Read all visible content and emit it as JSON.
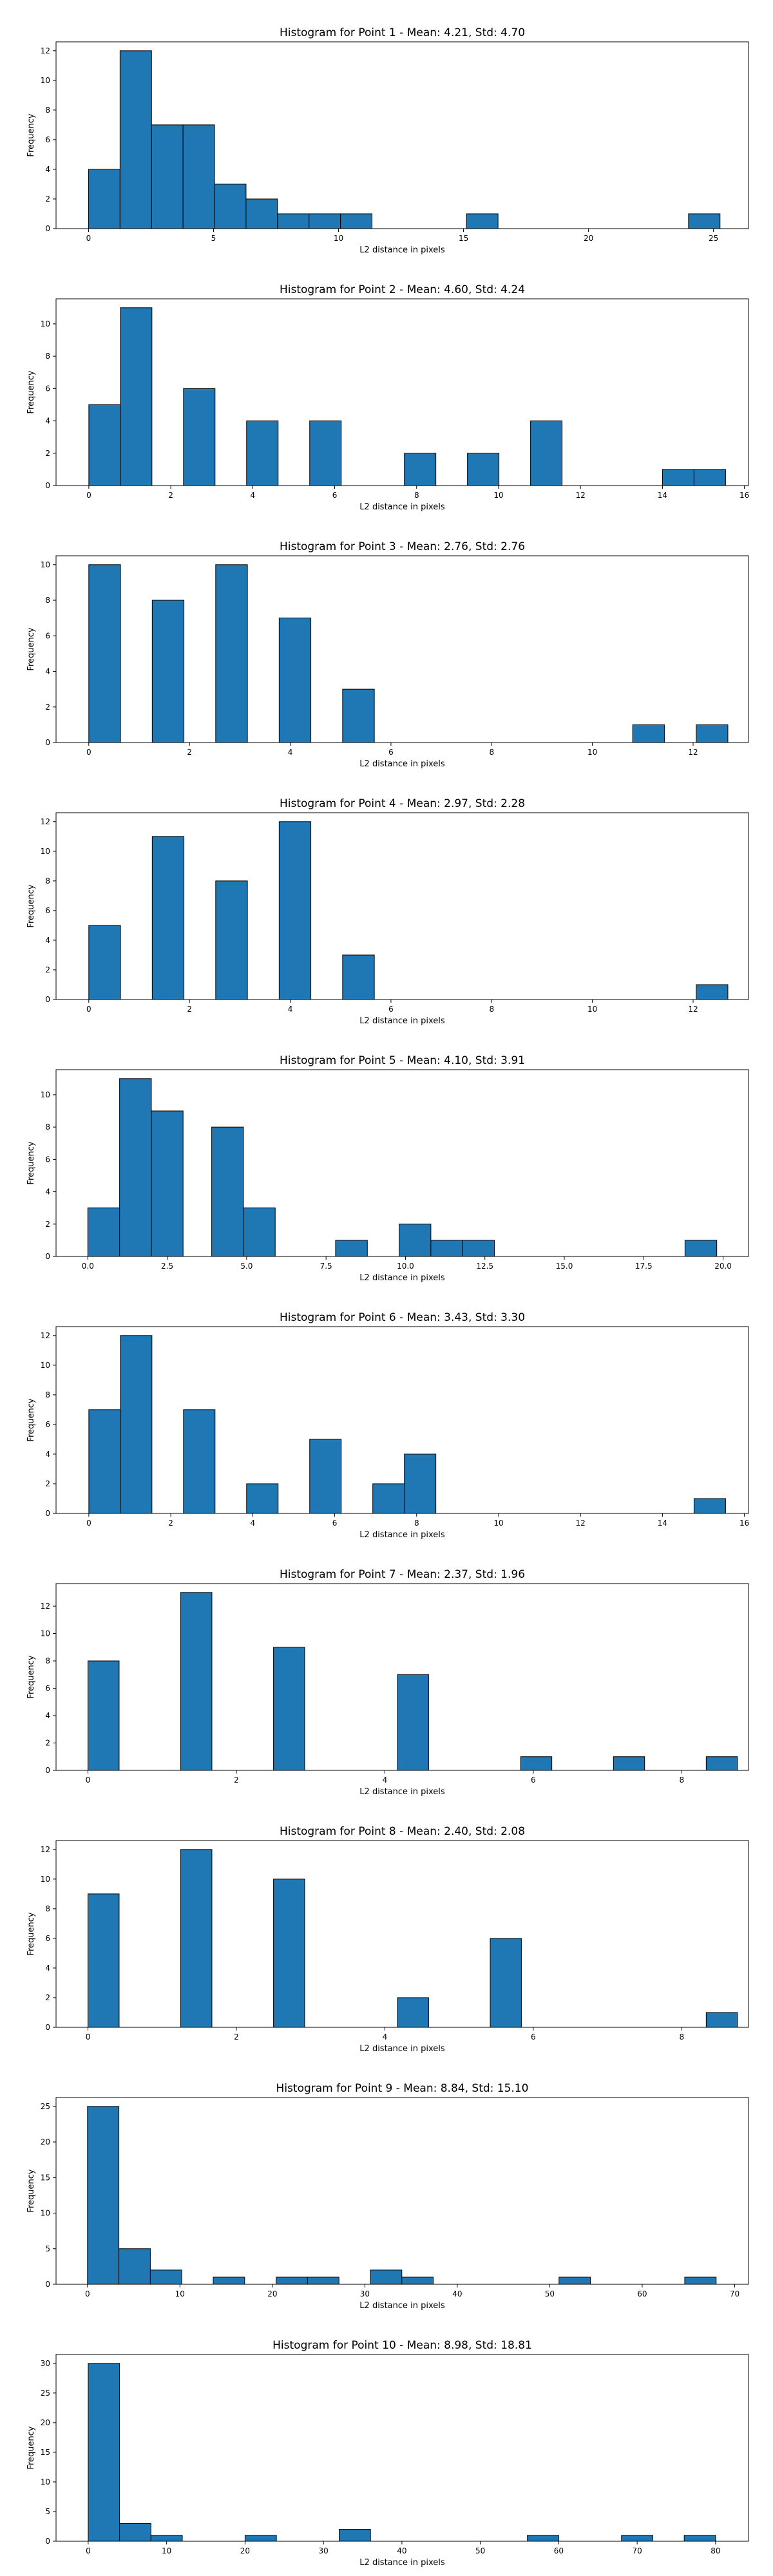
{
  "chart_data": [
    {
      "type": "bar",
      "title": "Histogram for Point 1 - Mean: 4.21, Std: 4.70",
      "xlabel": "L2 distance in pixels",
      "ylabel": "Frequency",
      "xlim": [
        -1.3,
        26.4
      ],
      "ylim": [
        0,
        12.6
      ],
      "xticks": [
        0,
        5,
        10,
        15,
        20,
        25
      ],
      "xtick_labels": [
        "0",
        "5",
        "10",
        "15",
        "20",
        "25"
      ],
      "yticks": [
        0,
        2,
        4,
        6,
        8,
        10,
        12
      ],
      "ytick_labels": [
        "0",
        "2",
        "4",
        "6",
        "8",
        "10",
        "12"
      ],
      "bins": [
        [
          0.0,
          1.26,
          4
        ],
        [
          1.26,
          2.52,
          12
        ],
        [
          2.52,
          3.78,
          7
        ],
        [
          3.78,
          5.04,
          7
        ],
        [
          5.04,
          6.3,
          3
        ],
        [
          6.3,
          7.56,
          2
        ],
        [
          7.56,
          8.82,
          1
        ],
        [
          8.82,
          10.08,
          1
        ],
        [
          10.08,
          11.34,
          1
        ],
        [
          15.12,
          16.38,
          1
        ],
        [
          24.0,
          25.26,
          1
        ]
      ],
      "color": "#1f77b4",
      "edge_color": "#000000"
    },
    {
      "type": "bar",
      "title": "Histogram for Point 2 - Mean: 4.60, Std: 4.24",
      "xlabel": "L2 distance in pixels",
      "ylabel": "Frequency",
      "xlim": [
        -0.8,
        16.1
      ],
      "ylim": [
        0,
        11.55
      ],
      "xticks": [
        0,
        2,
        4,
        6,
        8,
        10,
        12,
        14,
        16
      ],
      "xtick_labels": [
        "0",
        "2",
        "4",
        "6",
        "8",
        "10",
        "12",
        "14",
        "16"
      ],
      "yticks": [
        0,
        2,
        4,
        6,
        8,
        10
      ],
      "ytick_labels": [
        "0",
        "2",
        "4",
        "6",
        "8",
        "10"
      ],
      "bins": [
        [
          0.0,
          0.77,
          5
        ],
        [
          0.77,
          1.54,
          11
        ],
        [
          2.31,
          3.08,
          6
        ],
        [
          3.85,
          4.62,
          4
        ],
        [
          5.39,
          6.16,
          4
        ],
        [
          7.7,
          8.47,
          2
        ],
        [
          9.24,
          10.01,
          2
        ],
        [
          10.78,
          11.55,
          4
        ],
        [
          14.0,
          14.77,
          1
        ],
        [
          14.77,
          15.54,
          1
        ]
      ],
      "color": "#1f77b4",
      "edge_color": "#000000"
    },
    {
      "type": "bar",
      "title": "Histogram for Point 3 - Mean: 2.76, Std: 2.76",
      "xlabel": "L2 distance in pixels",
      "ylabel": "Frequency",
      "xlim": [
        -0.65,
        13.1
      ],
      "ylim": [
        0,
        10.5
      ],
      "xticks": [
        0,
        2,
        4,
        6,
        8,
        10,
        12
      ],
      "xtick_labels": [
        "0",
        "2",
        "4",
        "6",
        "8",
        "10",
        "12"
      ],
      "yticks": [
        0,
        2,
        4,
        6,
        8,
        10
      ],
      "ytick_labels": [
        "0",
        "2",
        "4",
        "6",
        "8",
        "10"
      ],
      "bins": [
        [
          0.0,
          0.63,
          10
        ],
        [
          1.26,
          1.89,
          8
        ],
        [
          2.52,
          3.15,
          10
        ],
        [
          3.78,
          4.41,
          7
        ],
        [
          5.04,
          5.67,
          3
        ],
        [
          10.8,
          11.43,
          1
        ],
        [
          12.06,
          12.69,
          1
        ]
      ],
      "color": "#1f77b4",
      "edge_color": "#000000"
    },
    {
      "type": "bar",
      "title": "Histogram for Point 4 - Mean: 2.97, Std: 2.28",
      "xlabel": "L2 distance in pixels",
      "ylabel": "Frequency",
      "xlim": [
        -0.65,
        13.1
      ],
      "ylim": [
        0,
        12.6
      ],
      "xticks": [
        0,
        2,
        4,
        6,
        8,
        10,
        12
      ],
      "xtick_labels": [
        "0",
        "2",
        "4",
        "6",
        "8",
        "10",
        "12"
      ],
      "yticks": [
        0,
        2,
        4,
        6,
        8,
        10,
        12
      ],
      "ytick_labels": [
        "0",
        "2",
        "4",
        "6",
        "8",
        "10",
        "12"
      ],
      "bins": [
        [
          0.0,
          0.63,
          5
        ],
        [
          1.26,
          1.89,
          11
        ],
        [
          2.52,
          3.15,
          8
        ],
        [
          3.78,
          4.41,
          12
        ],
        [
          5.04,
          5.67,
          3
        ],
        [
          12.06,
          12.69,
          1
        ]
      ],
      "color": "#1f77b4",
      "edge_color": "#000000"
    },
    {
      "type": "bar",
      "title": "Histogram for Point 5 - Mean: 4.10, Std: 3.91",
      "xlabel": "L2 distance in pixels",
      "ylabel": "Frequency",
      "xlim": [
        -1.0,
        20.8
      ],
      "ylim": [
        0,
        11.55
      ],
      "xticks": [
        0.0,
        2.5,
        5.0,
        7.5,
        10.0,
        12.5,
        15.0,
        17.5,
        20.0
      ],
      "xtick_labels": [
        "0.0",
        "2.5",
        "5.0",
        "7.5",
        "10.0",
        "12.5",
        "15.0",
        "17.5",
        "20.0"
      ],
      "yticks": [
        0,
        2,
        4,
        6,
        8,
        10
      ],
      "ytick_labels": [
        "0",
        "2",
        "4",
        "6",
        "8",
        "10"
      ],
      "bins": [
        [
          0.0,
          1.0,
          3
        ],
        [
          1.0,
          2.0,
          11
        ],
        [
          2.0,
          3.0,
          9
        ],
        [
          3.9,
          4.9,
          8
        ],
        [
          4.9,
          5.9,
          3
        ],
        [
          7.8,
          8.8,
          1
        ],
        [
          9.8,
          10.8,
          2
        ],
        [
          10.8,
          11.8,
          1
        ],
        [
          11.8,
          12.8,
          1
        ],
        [
          18.8,
          19.8,
          1
        ]
      ],
      "color": "#1f77b4",
      "edge_color": "#000000"
    },
    {
      "type": "bar",
      "title": "Histogram for Point 6 - Mean: 3.43, Std: 3.30",
      "xlabel": "L2 distance in pixels",
      "ylabel": "Frequency",
      "xlim": [
        -0.8,
        16.1
      ],
      "ylim": [
        0,
        12.6
      ],
      "xticks": [
        0,
        2,
        4,
        6,
        8,
        10,
        12,
        14,
        16
      ],
      "xtick_labels": [
        "0",
        "2",
        "4",
        "6",
        "8",
        "10",
        "12",
        "14",
        "16"
      ],
      "yticks": [
        0,
        2,
        4,
        6,
        8,
        10,
        12
      ],
      "ytick_labels": [
        "0",
        "2",
        "4",
        "6",
        "8",
        "10",
        "12"
      ],
      "bins": [
        [
          0.0,
          0.77,
          7
        ],
        [
          0.77,
          1.54,
          12
        ],
        [
          2.31,
          3.08,
          7
        ],
        [
          3.85,
          4.62,
          2
        ],
        [
          5.39,
          6.16,
          5
        ],
        [
          6.93,
          7.7,
          2
        ],
        [
          7.7,
          8.47,
          4
        ],
        [
          14.77,
          15.54,
          1
        ]
      ],
      "color": "#1f77b4",
      "edge_color": "#000000"
    },
    {
      "type": "bar",
      "title": "Histogram for Point 7 - Mean: 2.37, Std: 1.96",
      "xlabel": "L2 distance in pixels",
      "ylabel": "Frequency",
      "xlim": [
        -0.43,
        8.9
      ],
      "ylim": [
        0,
        13.65
      ],
      "xticks": [
        0,
        2,
        4,
        6,
        8
      ],
      "xtick_labels": [
        "0",
        "2",
        "4",
        "6",
        "8"
      ],
      "yticks": [
        0,
        2,
        4,
        6,
        8,
        10,
        12
      ],
      "ytick_labels": [
        "0",
        "2",
        "4",
        "6",
        "8",
        "10",
        "12"
      ],
      "bins": [
        [
          0.0,
          0.42,
          8
        ],
        [
          1.25,
          1.67,
          13
        ],
        [
          2.5,
          2.92,
          9
        ],
        [
          4.17,
          4.59,
          7
        ],
        [
          5.83,
          6.25,
          1
        ],
        [
          7.08,
          7.5,
          1
        ],
        [
          8.33,
          8.75,
          1
        ]
      ],
      "color": "#1f77b4",
      "edge_color": "#000000"
    },
    {
      "type": "bar",
      "title": "Histogram for Point 8 - Mean: 2.40, Std: 2.08",
      "xlabel": "L2 distance in pixels",
      "ylabel": "Frequency",
      "xlim": [
        -0.43,
        8.9
      ],
      "ylim": [
        0,
        12.6
      ],
      "xticks": [
        0,
        2,
        4,
        6,
        8
      ],
      "xtick_labels": [
        "0",
        "2",
        "4",
        "6",
        "8"
      ],
      "yticks": [
        0,
        2,
        4,
        6,
        8,
        10,
        12
      ],
      "ytick_labels": [
        "0",
        "2",
        "4",
        "6",
        "8",
        "10",
        "12"
      ],
      "bins": [
        [
          0.0,
          0.42,
          9
        ],
        [
          1.25,
          1.67,
          12
        ],
        [
          2.5,
          2.92,
          10
        ],
        [
          4.17,
          4.59,
          2
        ],
        [
          5.42,
          5.84,
          6
        ],
        [
          8.33,
          8.75,
          1
        ]
      ],
      "color": "#1f77b4",
      "edge_color": "#000000"
    },
    {
      "type": "bar",
      "title": "Histogram for Point 9 - Mean: 8.84, Std: 15.10",
      "xlabel": "L2 distance in pixels",
      "ylabel": "Frequency",
      "xlim": [
        -3.4,
        71.5
      ],
      "ylim": [
        0,
        26.25
      ],
      "xticks": [
        0,
        10,
        20,
        30,
        40,
        50,
        60,
        70
      ],
      "xtick_labels": [
        "0",
        "10",
        "20",
        "30",
        "40",
        "50",
        "60",
        "70"
      ],
      "yticks": [
        0,
        5,
        10,
        15,
        20,
        25
      ],
      "ytick_labels": [
        "0",
        "5",
        "10",
        "15",
        "20",
        "25"
      ],
      "bins": [
        [
          0.0,
          3.4,
          25
        ],
        [
          3.4,
          6.8,
          5
        ],
        [
          6.8,
          10.2,
          2
        ],
        [
          13.6,
          17.0,
          1
        ],
        [
          20.4,
          23.8,
          1
        ],
        [
          23.8,
          27.2,
          1
        ],
        [
          30.6,
          34.0,
          2
        ],
        [
          34.0,
          37.4,
          1
        ],
        [
          51.0,
          54.4,
          1
        ],
        [
          64.6,
          68.0,
          1
        ]
      ],
      "color": "#1f77b4",
      "edge_color": "#000000"
    },
    {
      "type": "bar",
      "title": "Histogram for Point 10 - Mean: 8.98, Std: 18.81",
      "xlabel": "L2 distance in pixels",
      "ylabel": "Frequency",
      "xlim": [
        -4.1,
        84.2
      ],
      "ylim": [
        0,
        31.5
      ],
      "xticks": [
        0,
        10,
        20,
        30,
        40,
        50,
        60,
        70,
        80
      ],
      "xtick_labels": [
        "0",
        "10",
        "20",
        "30",
        "40",
        "50",
        "60",
        "70",
        "80"
      ],
      "yticks": [
        0,
        5,
        10,
        15,
        20,
        25,
        30
      ],
      "ytick_labels": [
        "0",
        "5",
        "10",
        "15",
        "20",
        "25",
        "30"
      ],
      "bins": [
        [
          0.0,
          4.0,
          30
        ],
        [
          4.0,
          8.0,
          3
        ],
        [
          8.0,
          12.0,
          1
        ],
        [
          20.0,
          24.0,
          1
        ],
        [
          32.0,
          36.0,
          2
        ],
        [
          56.0,
          60.0,
          1
        ],
        [
          68.0,
          72.0,
          1
        ],
        [
          76.0,
          80.0,
          1
        ]
      ],
      "color": "#1f77b4",
      "edge_color": "#000000"
    }
  ]
}
